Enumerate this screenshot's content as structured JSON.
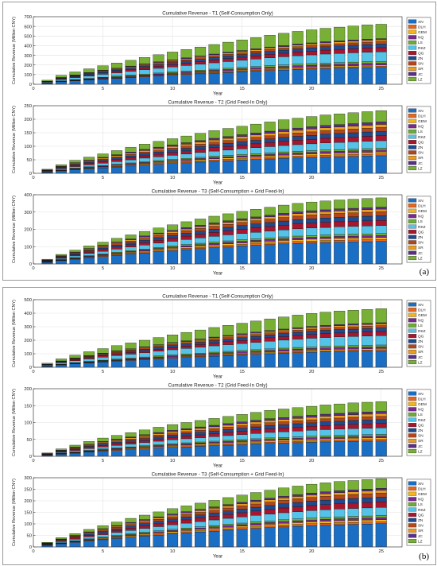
{
  "panels": [
    {
      "label": "(a)"
    },
    {
      "label": "(b)"
    }
  ],
  "stack_order": [
    "XN",
    "DLH",
    "GEM",
    "NQ",
    "LS",
    "RKZ",
    "QG",
    "ZN",
    "SN",
    "SR",
    "JC",
    "LZ"
  ],
  "legend_order": [
    "XN",
    "DLH",
    "GEM",
    "NQ",
    "LS",
    "RKZ",
    "QG",
    "ZN",
    "SN",
    "SR",
    "JC",
    "LZ"
  ],
  "colors": {
    "XN": "#1a6fc4",
    "DLH": "#e8661c",
    "GEM": "#f2b51e",
    "NQ": "#7a2a8c",
    "LS": "#6dae3a",
    "RKZ": "#55c2e8",
    "QG": "#a8162e",
    "ZN": "#1f4b8c",
    "SN": "#b4461c",
    "SR": "#e89c20",
    "JC": "#5a2f86",
    "LZ": "#78b035"
  },
  "shares": {
    "T1": {
      "XN": 0.28,
      "DLH": 0.02,
      "GEM": 0.02,
      "NQ": 0.03,
      "LS": 0.03,
      "RKZ": 0.16,
      "QG": 0.07,
      "ZN": 0.06,
      "SN": 0.04,
      "SR": 0.03,
      "JC": 0.02,
      "LZ": 0.24
    },
    "T2": {
      "XN": 0.28,
      "DLH": 0.03,
      "GEM": 0.03,
      "NQ": 0.03,
      "LS": 0.03,
      "RKZ": 0.12,
      "QG": 0.08,
      "ZN": 0.07,
      "SN": 0.06,
      "SR": 0.05,
      "JC": 0.04,
      "LZ": 0.18
    },
    "T3": {
      "XN": 0.34,
      "DLH": 0.03,
      "GEM": 0.03,
      "NQ": 0.03,
      "LS": 0.03,
      "RKZ": 0.12,
      "QG": 0.08,
      "ZN": 0.07,
      "SN": 0.06,
      "SR": 0.04,
      "JC": 0.03,
      "LZ": 0.14
    }
  },
  "chart_data": [
    {
      "type": "bar",
      "panel": "a",
      "title": "Cumulative Revenue - T1 (Self-Consumption Only)",
      "xlabel": "Year",
      "ylabel": "Cumulative Revenue (Million CNY)",
      "x": [
        1,
        2,
        3,
        4,
        5,
        6,
        7,
        8,
        9,
        10,
        11,
        12,
        13,
        14,
        15,
        16,
        17,
        18,
        19,
        20,
        21,
        22,
        23,
        24,
        25
      ],
      "totals": [
        42,
        92,
        128,
        160,
        192,
        220,
        248,
        278,
        306,
        334,
        360,
        386,
        412,
        436,
        460,
        484,
        508,
        528,
        548,
        564,
        580,
        592,
        604,
        615,
        622
      ],
      "share_key": "T1",
      "ylim": [
        0,
        700
      ],
      "yticks": [
        0,
        100,
        200,
        300,
        400,
        500,
        600,
        700
      ],
      "xticks": [
        0,
        5,
        10,
        15,
        20,
        25
      ],
      "xlim": [
        0,
        26.5
      ],
      "legend": "right",
      "grid": true
    },
    {
      "type": "bar",
      "panel": "a",
      "title": "Cumulative Revenue - T2 (Grid Feed-In Only)",
      "xlabel": "Year",
      "ylabel": "Cumulative Revenue (Million CNY)",
      "x": [
        1,
        2,
        3,
        4,
        5,
        6,
        7,
        8,
        9,
        10,
        11,
        12,
        13,
        14,
        15,
        16,
        17,
        18,
        19,
        20,
        21,
        22,
        23,
        24,
        25
      ],
      "totals": [
        15,
        32,
        48,
        60,
        72,
        84,
        96,
        108,
        118,
        128,
        138,
        148,
        158,
        166,
        174,
        182,
        190,
        198,
        204,
        210,
        216,
        220,
        224,
        228,
        232
      ],
      "share_key": "T2",
      "ylim": [
        0,
        250
      ],
      "yticks": [
        0,
        50,
        100,
        150,
        200,
        250
      ],
      "xticks": [
        0,
        5,
        10,
        15,
        20,
        25
      ],
      "xlim": [
        0,
        26.5
      ],
      "legend": "right",
      "grid": true
    },
    {
      "type": "bar",
      "panel": "a",
      "title": "Cumulative Revenue - T3 (Self-Consumption + Grid Feed-In)",
      "xlabel": "Year",
      "ylabel": "Cumulative Revenue (Million CNY)",
      "x": [
        1,
        2,
        3,
        4,
        5,
        6,
        7,
        8,
        9,
        10,
        11,
        12,
        13,
        14,
        15,
        16,
        17,
        18,
        19,
        20,
        21,
        22,
        23,
        24,
        25
      ],
      "totals": [
        27,
        55,
        80,
        104,
        126,
        148,
        168,
        188,
        208,
        226,
        244,
        260,
        276,
        290,
        304,
        316,
        328,
        340,
        350,
        358,
        364,
        370,
        374,
        378,
        382
      ],
      "share_key": "T3",
      "ylim": [
        0,
        400
      ],
      "yticks": [
        0,
        100,
        200,
        300,
        400
      ],
      "xticks": [
        0,
        5,
        10,
        15,
        20,
        25
      ],
      "xlim": [
        0,
        26.5
      ],
      "legend": "right",
      "grid": true
    },
    {
      "type": "bar",
      "panel": "b",
      "title": "Cumulative Revenue - T1 (Self-Consumption Only)",
      "xlabel": "Year",
      "ylabel": "Cumulative Revenue (Million CNY)",
      "x": [
        1,
        2,
        3,
        4,
        5,
        6,
        7,
        8,
        9,
        10,
        11,
        12,
        13,
        14,
        15,
        16,
        17,
        18,
        19,
        20,
        21,
        22,
        23,
        24,
        25
      ],
      "totals": [
        30,
        62,
        90,
        115,
        138,
        160,
        180,
        200,
        220,
        240,
        258,
        276,
        294,
        310,
        326,
        342,
        358,
        372,
        386,
        398,
        408,
        416,
        422,
        428,
        434
      ],
      "share_key": "T1",
      "ylim": [
        0,
        500
      ],
      "yticks": [
        0,
        100,
        200,
        300,
        400,
        500
      ],
      "xticks": [
        0,
        5,
        10,
        15,
        20,
        25
      ],
      "xlim": [
        0,
        26.5
      ],
      "legend": "right",
      "grid": true
    },
    {
      "type": "bar",
      "panel": "b",
      "title": "Cumulative Revenue - T2 (Grid Feed-In Only)",
      "xlabel": "Year",
      "ylabel": "Cumulative Revenue (Million CNY)",
      "x": [
        1,
        2,
        3,
        4,
        5,
        6,
        7,
        8,
        9,
        10,
        11,
        12,
        13,
        14,
        15,
        16,
        17,
        18,
        19,
        20,
        21,
        22,
        23,
        24,
        25
      ],
      "totals": [
        10,
        22,
        33,
        44,
        54,
        62,
        70,
        78,
        86,
        94,
        100,
        106,
        112,
        118,
        124,
        130,
        136,
        140,
        144,
        148,
        152,
        155,
        158,
        160,
        162
      ],
      "share_key": "T2",
      "ylim": [
        0,
        200
      ],
      "yticks": [
        0,
        50,
        100,
        150,
        200
      ],
      "xticks": [
        0,
        5,
        10,
        15,
        20,
        25
      ],
      "xlim": [
        0,
        26.5
      ],
      "legend": "right",
      "grid": true
    },
    {
      "type": "bar",
      "panel": "b",
      "title": "Cumulative Revenue - T3 (Self-Consumption + Grid Feed-In)",
      "xlabel": "Year",
      "ylabel": "Cumulative Revenue (Million CNY)",
      "x": [
        1,
        2,
        3,
        4,
        5,
        6,
        7,
        8,
        9,
        10,
        11,
        12,
        13,
        14,
        15,
        16,
        17,
        18,
        19,
        20,
        21,
        22,
        23,
        24,
        25
      ],
      "totals": [
        20,
        40,
        58,
        76,
        92,
        108,
        124,
        138,
        152,
        166,
        178,
        190,
        202,
        214,
        225,
        236,
        246,
        256,
        264,
        272,
        278,
        284,
        288,
        292,
        296
      ],
      "share_key": "T3",
      "ylim": [
        0,
        300
      ],
      "yticks": [
        0,
        50,
        100,
        150,
        200,
        250,
        300
      ],
      "xticks": [
        0,
        5,
        10,
        15,
        20,
        25
      ],
      "xlim": [
        0,
        26.5
      ],
      "legend": "right",
      "grid": true
    }
  ]
}
